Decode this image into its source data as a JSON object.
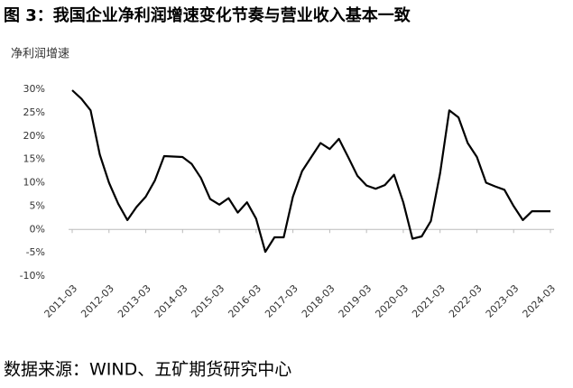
{
  "chart_data": {
    "type": "line",
    "title": "图 3：我国企业净利润增速变化节奏与营业收入基本一致",
    "ylabel": "净利润增速",
    "source": "数据来源：WIND、五矿期货研究中心",
    "categories": [
      "2011-03",
      null,
      null,
      null,
      "2012-03",
      null,
      null,
      null,
      "2013-03",
      null,
      null,
      null,
      "2014-03",
      null,
      null,
      null,
      "2015-03",
      null,
      null,
      null,
      "2016-03",
      null,
      null,
      null,
      "2017-03",
      null,
      null,
      null,
      "2018-03",
      null,
      null,
      null,
      "2019-03",
      null,
      null,
      null,
      "2020-03",
      null,
      null,
      null,
      "2021-03",
      null,
      null,
      null,
      "2022-03",
      null,
      null,
      null,
      "2023-03",
      null,
      null,
      null,
      "2024-03"
    ],
    "series": [
      {
        "name": "净利润增速",
        "color": "#000000",
        "values": [
          29.8,
          28,
          25.5,
          16,
          10,
          5.5,
          2,
          4.8,
          7,
          10.5,
          15.7,
          15.6,
          15.5,
          14,
          11,
          6.5,
          5.3,
          6.7,
          3.6,
          5.8,
          2.3,
          -4.8,
          -1.7,
          -1.7,
          7,
          12.5,
          15.5,
          18.5,
          17.2,
          19.4,
          15.5,
          11.5,
          9.4,
          8.7,
          9.5,
          11.7,
          5.8,
          -2,
          -1.5,
          1.8,
          12,
          25.5,
          24,
          18.5,
          15.5,
          10,
          9.2,
          8.5,
          5,
          2,
          3.9,
          3.9,
          3.9
        ]
      }
    ],
    "ylim": [
      -10,
      30
    ],
    "yticks": [
      {
        "value": -10,
        "label": "-10%"
      },
      {
        "value": -5,
        "label": "-5%"
      },
      {
        "value": 0,
        "label": "0%"
      },
      {
        "value": 5,
        "label": "5%"
      },
      {
        "value": 10,
        "label": "10%"
      },
      {
        "value": 15,
        "label": "15%"
      },
      {
        "value": 20,
        "label": "20%"
      },
      {
        "value": 25,
        "label": "25%"
      },
      {
        "value": 30,
        "label": "30%"
      }
    ],
    "grid": false
  }
}
